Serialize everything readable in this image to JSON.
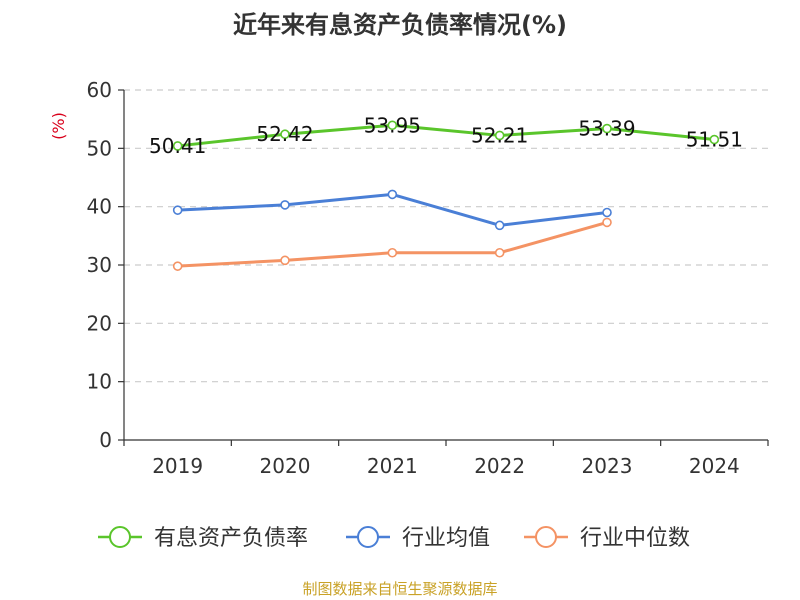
{
  "chart_data": {
    "type": "line",
    "title": "近年来有息资产负债率情况(%)",
    "unit_label": "(%)",
    "categories": [
      "2019",
      "2020",
      "2021",
      "2022",
      "2023",
      "2024"
    ],
    "ylim": [
      0,
      60
    ],
    "yticks": [
      0,
      10,
      20,
      30,
      40,
      50,
      60
    ],
    "grid": "horizontal-dashed",
    "legend_position": "bottom",
    "series": [
      {
        "name": "有息资产负债率",
        "color": "#5ac52b",
        "values": [
          50.41,
          52.42,
          53.95,
          52.21,
          53.39,
          51.51
        ],
        "labels": [
          "50.41",
          "52.42",
          "53.95",
          "52.21",
          "53.39",
          "51.51"
        ]
      },
      {
        "name": "行业均值",
        "color": "#4a7fd6",
        "values": [
          39.4,
          40.3,
          42.1,
          36.8,
          39.0,
          null
        ]
      },
      {
        "name": "行业中位数",
        "color": "#f49364",
        "values": [
          29.8,
          30.8,
          32.1,
          32.1,
          37.3,
          null
        ]
      }
    ]
  },
  "source_text": "制图数据来自恒生聚源数据库"
}
